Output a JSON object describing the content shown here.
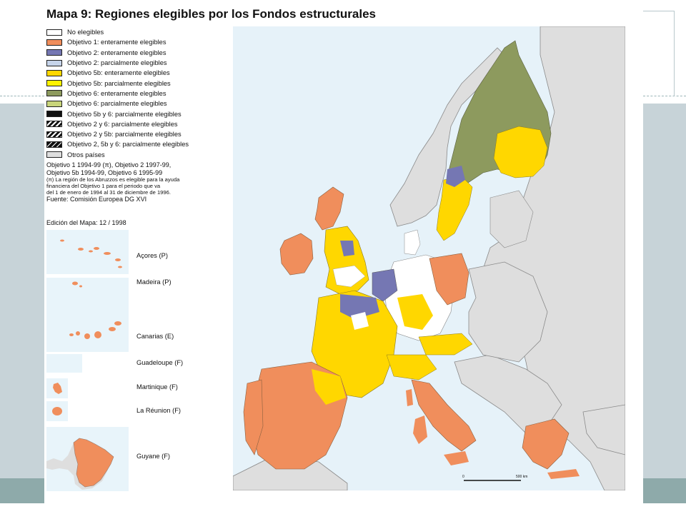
{
  "title": "Mapa 9: Regiones elegibles por los Fondos estructurales",
  "legend": [
    {
      "label": "No elegibles",
      "color": "#ffffff",
      "pattern": "none"
    },
    {
      "label": "Objetivo 1: enteramente elegibles",
      "color": "#f08e5c",
      "pattern": "none"
    },
    {
      "label": "Objetivo 2: enteramente elegibles",
      "color": "#7577b3",
      "pattern": "none"
    },
    {
      "label": "Objetivo 2: parcialmente elegibles",
      "color": "#c6d4ea",
      "pattern": "none"
    },
    {
      "label": "Objetivo 5b: enteramente elegibles",
      "color": "#ffd700",
      "pattern": "none"
    },
    {
      "label": "Objetivo 5b: parcialmente elegibles",
      "color": "#fff200",
      "pattern": "none"
    },
    {
      "label": "Objetivo 6: enteramente elegibles",
      "color": "#8d9a5e",
      "pattern": "none"
    },
    {
      "label": "Objetivo 6: parcialmente elegibles",
      "color": "#c8d47a",
      "pattern": "none"
    },
    {
      "label": "Objetivo 5b y 6: parcialmente elegibles",
      "color": "#111111",
      "pattern": "none"
    },
    {
      "label": "Objetivo 2 y 6: parcialmente elegibles",
      "color": "#111111",
      "pattern": "hatch"
    },
    {
      "label": "Objetivo 2 y 5b: parcialmente elegibles",
      "color": "#111111",
      "pattern": "hatch"
    },
    {
      "label": "Objetivo 2, 5b y 6: parcialmente elegibles",
      "color": "#111111",
      "pattern": "hatch-thin"
    },
    {
      "label": "Otros países",
      "color": "#dedede",
      "pattern": "none"
    }
  ],
  "notes": {
    "line1": "Objetivo 1 1994-99 (π), Objetivo 2 1997-99,",
    "line2": "Objetivo 5b 1994-99, Objetivo 6 1995-99",
    "small1": "(π) La región de los Abruzzos es elegible para la ayuda",
    "small2": "financiera del Objetivo 1 para el periodo que va",
    "small3": "del 1 de enero de 1994 al 31 de diciembre de 1996.",
    "source": "Fuente: Comisión Europea DG XVI"
  },
  "edition": "Edición del Mapa: 12 / 1998",
  "insets": [
    {
      "label": "Açores (P)"
    },
    {
      "label": "Madeira (P)"
    },
    {
      "label": "Canarias (E)"
    },
    {
      "label": "Guadeloupe (F)"
    },
    {
      "label": "Martinique (F)"
    },
    {
      "label": "La Réunion (F)"
    },
    {
      "label": "Guyane (F)"
    }
  ],
  "scale": {
    "start": "0",
    "end": "500 km"
  },
  "colors": {
    "sea": "#e6f2f9",
    "other_countries": "#dedede",
    "objective1": "#f08e5c",
    "objective2": "#7577b3",
    "objective5b": "#ffd700",
    "objective6": "#8d9a5e",
    "not_eligible": "#ffffff"
  }
}
